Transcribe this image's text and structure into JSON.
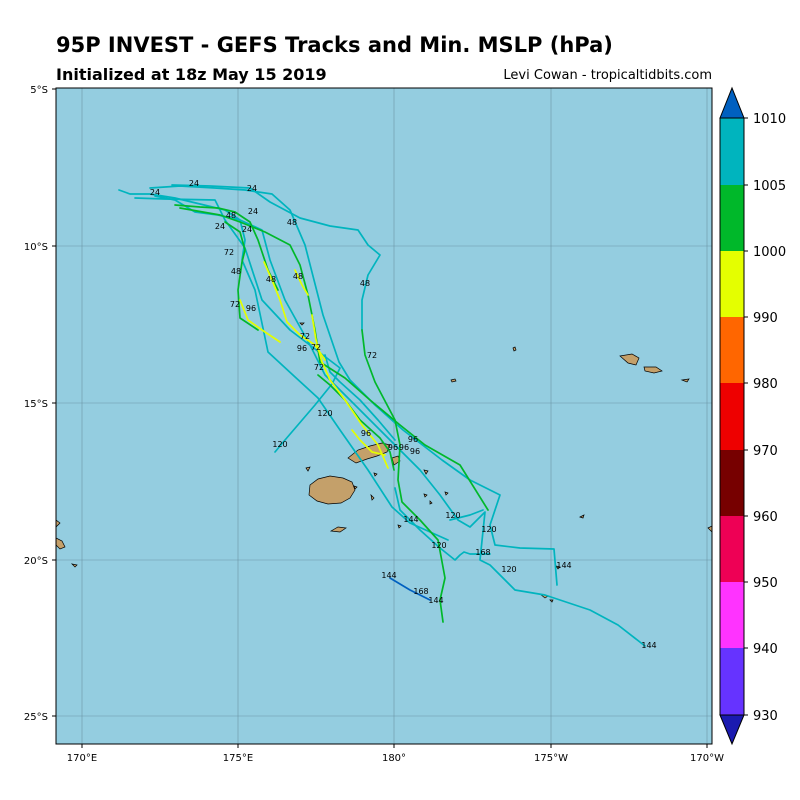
{
  "header": {
    "title": "95P INVEST - GEFS Tracks and Min. MSLP (hPa)",
    "subtitle": "Initialized at 18z May 15 2019",
    "credit": "Levi Cowan - tropicaltidbits.com"
  },
  "map": {
    "ocean_color": "#94cde0",
    "land_color": "#c4a06a",
    "lon_ticks": [
      "170°E",
      "175°E",
      "180°",
      "175°W",
      "170°W"
    ],
    "lat_ticks": [
      "5°S",
      "10°S",
      "15°S",
      "20°S",
      "25°S"
    ]
  },
  "colorbar": {
    "levels": [
      "930",
      "940",
      "950",
      "960",
      "970",
      "980",
      "990",
      "1000",
      "1005",
      "1010"
    ],
    "colors": [
      "#1a1ab0",
      "#6633ff",
      "#ff33ff",
      "#ee0055",
      "#770000",
      "#ee0000",
      "#ff6600",
      "#e4ff00",
      "#00b82a",
      "#00b4be",
      "#0060c0"
    ]
  },
  "chart_data": {
    "type": "map-tracks",
    "units": "hPa",
    "longitude_range": [
      "170°E",
      "170°W"
    ],
    "latitude_range": [
      "5°S",
      "25°S"
    ],
    "forecast_hour_labels": [
      "24",
      "24",
      "24",
      "24",
      "24",
      "24",
      "48",
      "48",
      "48",
      "48",
      "48",
      "48",
      "72",
      "72",
      "72",
      "72",
      "72",
      "72",
      "96",
      "96",
      "96",
      "96",
      "96",
      "96",
      "96",
      "120",
      "120",
      "120",
      "120",
      "120",
      "120",
      "144",
      "144",
      "144",
      "144",
      "144",
      "168",
      "168"
    ]
  }
}
